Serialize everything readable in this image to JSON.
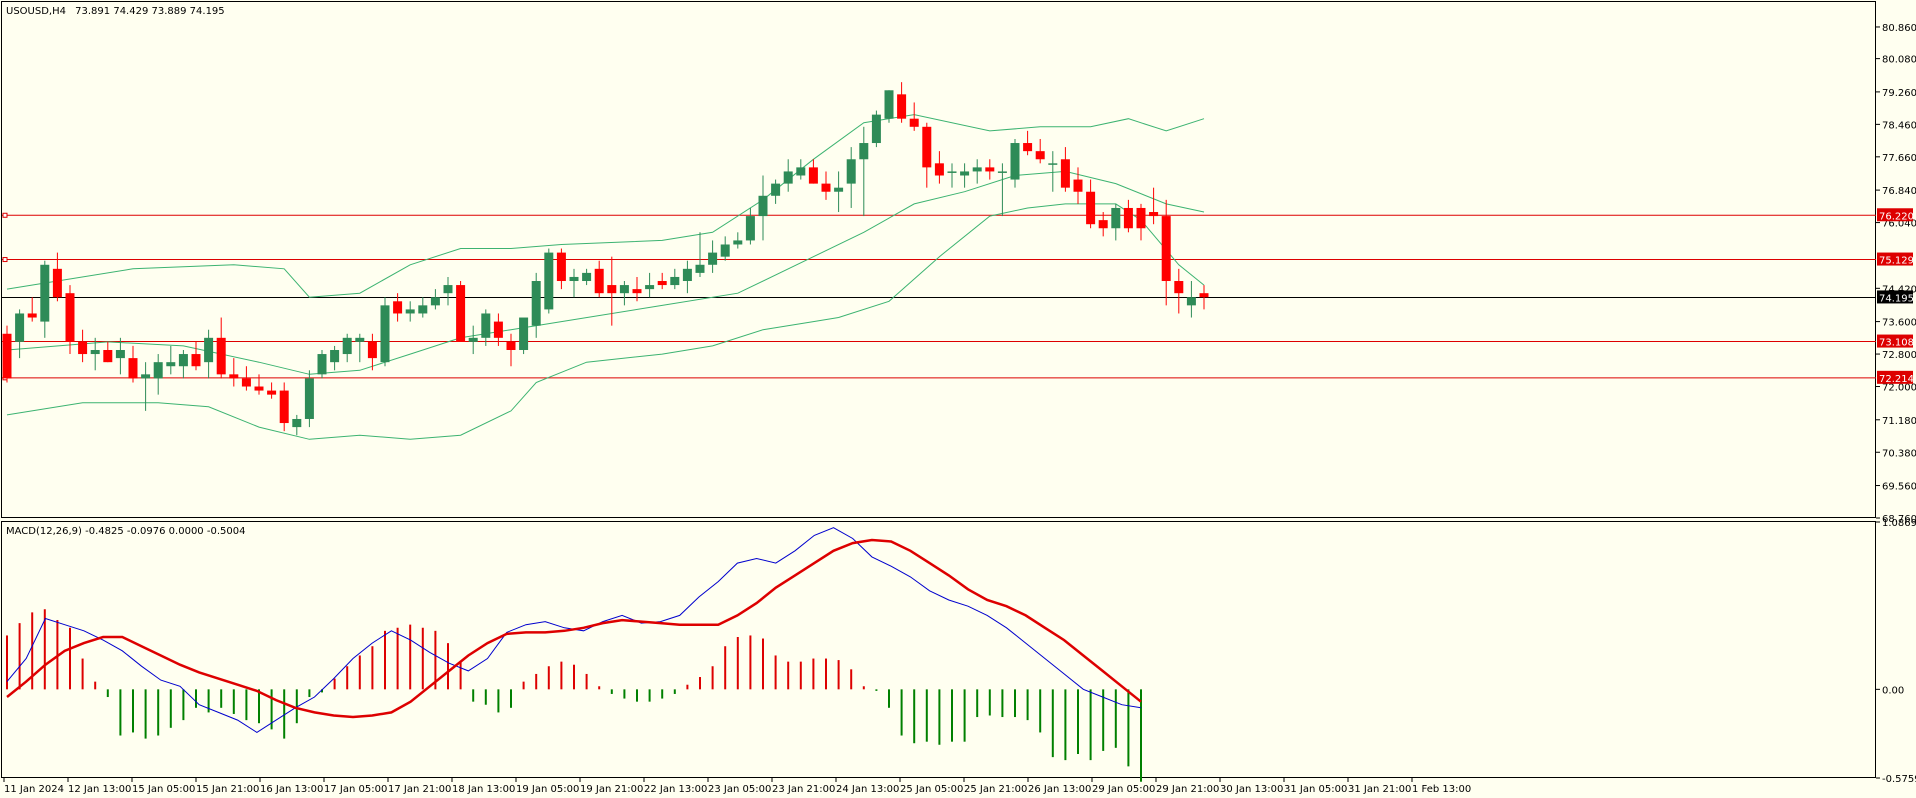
{
  "header": {
    "symbol_tf": "USOUSD,H4",
    "ohlc": "73.891 74.429 73.889 74.195",
    "indicator": "MACD(12,26,9) -0.4825 -0.0976 0.0000 -0.5004"
  },
  "colors": {
    "background": "#fffff0",
    "up": "#2e8b57",
    "down": "#ff0000",
    "bands": "#3cb371",
    "macd_main": "#0000cd",
    "macd_signal": "#dd0000",
    "hist_pos": "#dd0000",
    "hist_neg": "#008000",
    "level_line": "#dd0000",
    "current_line": "#000000"
  },
  "chart_data": [
    {
      "type": "candlestick",
      "price_axis_ticks": [
        "80.860",
        "80.080",
        "79.260",
        "78.460",
        "77.660",
        "76.840",
        "76.040",
        "74.420",
        "73.600",
        "72.800",
        "72.000",
        "71.180",
        "70.380",
        "69.560",
        "68.760"
      ],
      "ylim": [
        68.76,
        81.5
      ],
      "time_labels": [
        "11 Jan 2024",
        "12 Jan 13:00",
        "15 Jan 05:00",
        "15 Jan 21:00",
        "16 Jan 13:00",
        "17 Jan 05:00",
        "17 Jan 21:00",
        "18 Jan 13:00",
        "19 Jan 05:00",
        "19 Jan 21:00",
        "22 Jan 13:00",
        "23 Jan 05:00",
        "23 Jan 21:00",
        "24 Jan 13:00",
        "25 Jan 05:00",
        "25 Jan 21:00",
        "26 Jan 13:00",
        "29 Jan 05:00",
        "29 Jan 21:00",
        "30 Jan 13:00",
        "31 Jan 05:00",
        "31 Jan 21:00",
        "1 Feb 13:00"
      ],
      "horizontal_levels": [
        {
          "value": 76.22,
          "label": "76.220"
        },
        {
          "value": 75.129,
          "label": "75.129"
        },
        {
          "value": 73.108,
          "label": "73.108"
        },
        {
          "value": 72.214,
          "label": "72.214"
        }
      ],
      "current_price": {
        "value": 74.195,
        "label": "74.195"
      },
      "candles": [
        [
          73.3,
          73.5,
          72.1,
          72.2
        ],
        [
          73.1,
          73.9,
          72.7,
          73.8
        ],
        [
          73.8,
          74.2,
          73.6,
          73.7
        ],
        [
          73.6,
          75.1,
          73.2,
          75.0
        ],
        [
          74.9,
          75.3,
          74.1,
          74.2
        ],
        [
          74.3,
          74.5,
          72.8,
          73.1
        ],
        [
          73.1,
          73.4,
          72.6,
          72.8
        ],
        [
          72.8,
          73.2,
          72.4,
          72.9
        ],
        [
          72.9,
          73.1,
          72.6,
          72.6
        ],
        [
          72.7,
          73.2,
          72.3,
          72.9
        ],
        [
          72.7,
          73.0,
          72.1,
          72.2
        ],
        [
          72.2,
          72.6,
          71.4,
          72.3
        ],
        [
          72.2,
          72.8,
          71.8,
          72.6
        ],
        [
          72.5,
          73.0,
          72.3,
          72.6
        ],
        [
          72.5,
          72.9,
          72.2,
          72.8
        ],
        [
          72.8,
          73.1,
          72.4,
          72.5
        ],
        [
          72.6,
          73.4,
          72.2,
          73.2
        ],
        [
          73.2,
          73.7,
          72.2,
          72.3
        ],
        [
          72.3,
          72.7,
          72.0,
          72.2
        ],
        [
          72.2,
          72.5,
          71.9,
          72.0
        ],
        [
          72.0,
          72.3,
          71.8,
          71.9
        ],
        [
          71.9,
          72.1,
          71.7,
          71.8
        ],
        [
          71.9,
          72.1,
          70.9,
          71.1
        ],
        [
          71.0,
          71.3,
          70.8,
          71.2
        ],
        [
          71.2,
          72.4,
          71.0,
          72.2
        ],
        [
          72.3,
          72.9,
          72.2,
          72.8
        ],
        [
          72.6,
          73.0,
          72.4,
          72.9
        ],
        [
          72.8,
          73.3,
          72.6,
          73.2
        ],
        [
          73.1,
          73.3,
          72.6,
          73.2
        ],
        [
          73.1,
          73.3,
          72.4,
          72.7
        ],
        [
          72.6,
          74.2,
          72.5,
          74.0
        ],
        [
          74.1,
          74.3,
          73.6,
          73.8
        ],
        [
          73.8,
          74.1,
          73.6,
          73.9
        ],
        [
          73.8,
          74.2,
          73.7,
          74.0
        ],
        [
          74.0,
          74.4,
          73.9,
          74.2
        ],
        [
          74.3,
          74.7,
          74.0,
          74.5
        ],
        [
          74.5,
          74.6,
          73.1,
          73.1
        ],
        [
          73.1,
          73.5,
          72.8,
          73.2
        ],
        [
          73.2,
          73.9,
          73.0,
          73.8
        ],
        [
          73.6,
          73.8,
          73.0,
          73.2
        ],
        [
          73.1,
          73.3,
          72.5,
          72.9
        ],
        [
          72.9,
          73.6,
          72.8,
          73.7
        ],
        [
          73.5,
          74.8,
          73.2,
          74.6
        ],
        [
          73.9,
          75.4,
          73.8,
          75.3
        ],
        [
          75.3,
          75.4,
          74.4,
          74.6
        ],
        [
          74.6,
          74.9,
          74.2,
          74.7
        ],
        [
          74.6,
          74.9,
          74.5,
          74.8
        ],
        [
          74.9,
          75.1,
          74.2,
          74.3
        ],
        [
          74.5,
          75.2,
          73.5,
          74.3
        ],
        [
          74.3,
          74.6,
          74.0,
          74.5
        ],
        [
          74.4,
          74.7,
          74.1,
          74.3
        ],
        [
          74.4,
          74.8,
          74.2,
          74.5
        ],
        [
          74.6,
          74.8,
          74.4,
          74.5
        ],
        [
          74.5,
          74.9,
          74.4,
          74.7
        ],
        [
          74.6,
          75.1,
          74.3,
          74.9
        ],
        [
          74.8,
          75.8,
          74.7,
          75.0
        ],
        [
          75.0,
          75.6,
          74.8,
          75.3
        ],
        [
          75.2,
          75.7,
          75.1,
          75.5
        ],
        [
          75.5,
          75.8,
          75.4,
          75.6
        ],
        [
          75.6,
          76.4,
          75.5,
          76.2
        ],
        [
          76.2,
          77.2,
          75.6,
          76.7
        ],
        [
          76.7,
          77.1,
          76.5,
          77.0
        ],
        [
          77.0,
          77.6,
          76.8,
          77.3
        ],
        [
          77.2,
          77.6,
          77.1,
          77.4
        ],
        [
          77.4,
          77.6,
          77.0,
          77.0
        ],
        [
          77.0,
          77.3,
          76.6,
          76.8
        ],
        [
          76.8,
          77.3,
          76.3,
          76.9
        ],
        [
          77.0,
          77.9,
          76.4,
          77.6
        ],
        [
          77.6,
          78.4,
          76.2,
          78.0
        ],
        [
          78.0,
          78.8,
          77.9,
          78.7
        ],
        [
          78.6,
          79.3,
          78.5,
          79.3
        ],
        [
          79.2,
          79.5,
          78.5,
          78.6
        ],
        [
          78.6,
          79.0,
          78.3,
          78.4
        ],
        [
          78.4,
          78.5,
          76.9,
          77.4
        ],
        [
          77.5,
          77.8,
          77.0,
          77.2
        ],
        [
          77.3,
          77.5,
          76.9,
          77.3
        ],
        [
          77.2,
          77.5,
          76.9,
          77.3
        ],
        [
          77.3,
          77.6,
          77.0,
          77.4
        ],
        [
          77.4,
          77.6,
          77.1,
          77.3
        ],
        [
          77.3,
          77.5,
          76.2,
          77.3
        ],
        [
          77.1,
          78.1,
          76.9,
          78.0
        ],
        [
          78.0,
          78.3,
          77.7,
          77.8
        ],
        [
          77.8,
          78.1,
          77.5,
          77.6
        ],
        [
          77.5,
          77.8,
          76.8,
          77.5
        ],
        [
          77.6,
          77.9,
          76.8,
          76.9
        ],
        [
          77.1,
          77.4,
          76.5,
          76.8
        ],
        [
          76.8,
          77.1,
          75.9,
          76.0
        ],
        [
          76.1,
          76.3,
          75.7,
          75.9
        ],
        [
          75.9,
          76.5,
          75.6,
          76.4
        ],
        [
          76.4,
          76.6,
          75.8,
          75.9
        ],
        [
          76.4,
          76.5,
          75.6,
          75.9
        ],
        [
          76.3,
          76.9,
          76.0,
          76.2
        ],
        [
          76.2,
          76.6,
          74.0,
          74.6
        ],
        [
          74.6,
          74.9,
          73.8,
          74.3
        ],
        [
          74.0,
          74.6,
          73.7,
          74.2
        ],
        [
          74.3,
          74.5,
          73.9,
          74.2
        ]
      ],
      "bands": {
        "upper": [
          [
            0,
            74.4
          ],
          [
            10,
            74.9
          ],
          [
            18,
            75.0
          ],
          [
            22,
            74.9
          ],
          [
            24,
            74.2
          ],
          [
            28,
            74.3
          ],
          [
            32,
            75.0
          ],
          [
            36,
            75.4
          ],
          [
            40,
            75.4
          ],
          [
            44,
            75.5
          ],
          [
            52,
            75.6
          ],
          [
            56,
            75.8
          ],
          [
            60,
            76.6
          ],
          [
            64,
            77.6
          ],
          [
            68,
            78.5
          ],
          [
            72,
            78.7
          ],
          [
            78,
            78.3
          ],
          [
            82,
            78.4
          ],
          [
            86,
            78.4
          ],
          [
            89,
            78.6
          ],
          [
            92,
            78.3
          ],
          [
            95,
            78.6
          ]
        ],
        "middle": [
          [
            0,
            72.9
          ],
          [
            8,
            73.1
          ],
          [
            14,
            73.0
          ],
          [
            20,
            72.6
          ],
          [
            24,
            72.3
          ],
          [
            28,
            72.4
          ],
          [
            32,
            72.8
          ],
          [
            36,
            73.2
          ],
          [
            40,
            73.4
          ],
          [
            44,
            73.6
          ],
          [
            52,
            74.0
          ],
          [
            58,
            74.3
          ],
          [
            64,
            75.2
          ],
          [
            68,
            75.8
          ],
          [
            72,
            76.5
          ],
          [
            76,
            76.8
          ],
          [
            80,
            77.2
          ],
          [
            84,
            77.3
          ],
          [
            88,
            77.0
          ],
          [
            92,
            76.5
          ],
          [
            95,
            76.3
          ]
        ],
        "lower": [
          [
            0,
            71.3
          ],
          [
            6,
            71.6
          ],
          [
            12,
            71.6
          ],
          [
            16,
            71.5
          ],
          [
            20,
            71.0
          ],
          [
            24,
            70.7
          ],
          [
            28,
            70.8
          ],
          [
            32,
            70.7
          ],
          [
            36,
            70.8
          ],
          [
            40,
            71.4
          ],
          [
            42,
            72.1
          ],
          [
            46,
            72.6
          ],
          [
            52,
            72.8
          ],
          [
            56,
            73.0
          ],
          [
            60,
            73.4
          ],
          [
            64,
            73.6
          ],
          [
            66,
            73.7
          ],
          [
            70,
            74.1
          ],
          [
            74,
            75.2
          ],
          [
            78,
            76.2
          ],
          [
            81,
            76.4
          ],
          [
            84,
            76.5
          ],
          [
            88,
            76.5
          ],
          [
            90,
            76.1
          ],
          [
            93,
            75.0
          ],
          [
            95,
            74.5
          ]
        ]
      }
    },
    {
      "type": "macd",
      "ylim": [
        -0.5759,
        1.0869
      ],
      "axis_ticks": [
        "1.0869",
        "0.00",
        "-0.5759"
      ],
      "histogram": [
        0.35,
        0.43,
        0.5,
        0.52,
        0.45,
        0.4,
        0.2,
        0.05,
        -0.05,
        -0.3,
        -0.28,
        -0.32,
        -0.3,
        -0.25,
        -0.2,
        -0.12,
        -0.15,
        -0.12,
        -0.16,
        -0.2,
        -0.22,
        -0.26,
        -0.32,
        -0.22,
        -0.05,
        -0.02,
        0.07,
        0.15,
        0.22,
        0.28,
        0.38,
        0.4,
        0.42,
        0.4,
        0.38,
        0.3,
        0.18,
        -0.08,
        -0.1,
        -0.15,
        -0.12,
        0.05,
        0.1,
        0.15,
        0.18,
        0.16,
        0.1,
        0.02,
        -0.03,
        -0.06,
        -0.08,
        -0.08,
        -0.06,
        -0.03,
        0.03,
        0.08,
        0.15,
        0.28,
        0.34,
        0.35,
        0.33,
        0.22,
        0.18,
        0.18,
        0.2,
        0.2,
        0.19,
        0.13,
        0.02,
        -0.01,
        -0.12,
        -0.3,
        -0.35,
        -0.34,
        -0.36,
        -0.34,
        -0.34,
        -0.18,
        -0.17,
        -0.18,
        -0.18,
        -0.2,
        -0.28,
        -0.44,
        -0.46,
        -0.42,
        -0.46,
        -0.4,
        -0.38,
        -0.5,
        -0.6
      ],
      "main": [
        0.05,
        0.2,
        0.46,
        0.42,
        0.38,
        0.32,
        0.25,
        0.15,
        0.06,
        0.02,
        -0.1,
        -0.15,
        -0.2,
        -0.28,
        -0.2,
        -0.12,
        -0.05,
        0.07,
        0.2,
        0.3,
        0.38,
        0.32,
        0.24,
        0.17,
        0.12,
        0.2,
        0.37,
        0.42,
        0.44,
        0.4,
        0.38,
        0.44,
        0.48,
        0.43,
        0.44,
        0.48,
        0.6,
        0.7,
        0.82,
        0.85,
        0.82,
        0.9,
        1.0,
        1.05,
        0.98,
        0.86,
        0.8,
        0.73,
        0.64,
        0.58,
        0.54,
        0.48,
        0.4,
        0.3,
        0.2,
        0.1,
        0.0,
        -0.05,
        -0.1,
        -0.12
      ],
      "signal": [
        -0.05,
        0.05,
        0.16,
        0.25,
        0.3,
        0.34,
        0.34,
        0.28,
        0.22,
        0.16,
        0.11,
        0.07,
        0.03,
        -0.01,
        -0.07,
        -0.12,
        -0.15,
        -0.17,
        -0.18,
        -0.17,
        -0.15,
        -0.08,
        0.02,
        0.12,
        0.22,
        0.3,
        0.36,
        0.37,
        0.37,
        0.38,
        0.4,
        0.43,
        0.45,
        0.44,
        0.43,
        0.42,
        0.42,
        0.42,
        0.48,
        0.56,
        0.66,
        0.74,
        0.82,
        0.9,
        0.95,
        0.97,
        0.96,
        0.9,
        0.82,
        0.74,
        0.65,
        0.58,
        0.54,
        0.48,
        0.4,
        0.32,
        0.22,
        0.12,
        0.02,
        -0.08
      ]
    }
  ]
}
